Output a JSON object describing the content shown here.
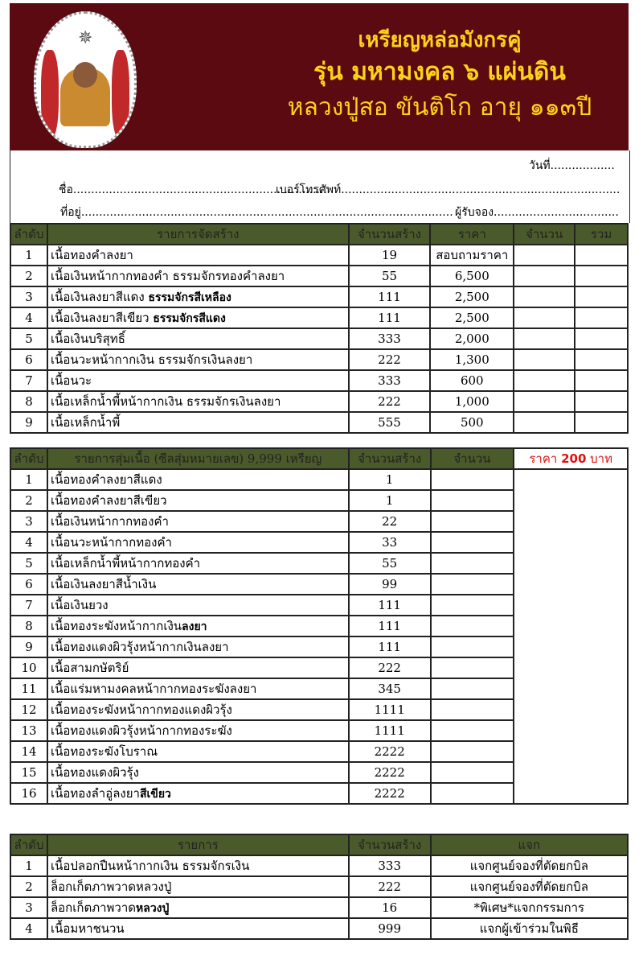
{
  "header": {
    "title1": "เหรียญหล่อมังกรคู่",
    "title2": "รุ่น มหามงคล ๖ แผ่นดิน",
    "title3": "หลวงปู่สอ ขันติโก อายุ ๑๑๓ปี",
    "banner_color": "#5a0a10",
    "title_color": "#ffd21a"
  },
  "form": {
    "date": "วันที่..................",
    "name": "ชื่อ.......................................................... ............",
    "phone": "เบอร์โทรศัพท์................................................................................",
    "address": "ที่อยู่..........................................................................................................................",
    "receiver": "ผู้รับจอง..................................."
  },
  "section1": {
    "headers": [
      "ลำดับ",
      "รายการจัดสร้าง",
      "จำนวนสร้าง",
      "ราคา",
      "จำนวน",
      "รวม"
    ],
    "rows": [
      {
        "no": "1",
        "name": "เนื้อทองคำลงยา",
        "bold": "",
        "qty": "19",
        "price": "สอบถามราคา"
      },
      {
        "no": "2",
        "name": "เนื้อเงินหน้ากากทองคำ ธรรมจักรทองคำลงยา",
        "bold": "",
        "qty": "55",
        "price": "6,500"
      },
      {
        "no": "3",
        "name": "เนื้อเงินลงยาสีแดง ",
        "bold": "ธรรมจักรสีเหลือง",
        "qty": "111",
        "price": "2,500"
      },
      {
        "no": "4",
        "name": "เนื้อเงินลงยาสีเขียว ",
        "bold": "ธรรมจักรสีแดง",
        "qty": "111",
        "price": "2,500"
      },
      {
        "no": "5",
        "name": "เนื้อเงินบริสุทธิ์",
        "bold": "",
        "qty": "333",
        "price": "2,000"
      },
      {
        "no": "6",
        "name": "เนื้อนวะหน้ากากเงิน ธรรมจักรเงินลงยา",
        "bold": "",
        "qty": "222",
        "price": "1,300"
      },
      {
        "no": "7",
        "name": "เนื้อนวะ",
        "bold": "",
        "qty": "333",
        "price": "600"
      },
      {
        "no": "8",
        "name": "เนื้อเหล็กน้ำพี้หน้ากากเงิน ธรรมจักรเงินลงยา",
        "bold": "",
        "qty": "222",
        "price": "1,000"
      },
      {
        "no": "9",
        "name": "เนื้อเหล็กน้ำพี้",
        "bold": "",
        "qty": "555",
        "price": "500"
      }
    ]
  },
  "section2": {
    "headers": [
      "ลำดับ",
      "รายการสุ่มเนื้อ (ซีลสุ่มหมายเลข) 9,999 เหรียญ",
      "จำนวนสร้าง",
      "จำนวน"
    ],
    "price_label": "ราคา ",
    "price_value": "200",
    "price_unit": " บาท",
    "rows": [
      {
        "no": "1",
        "name": "เนื้อทองคำลงยาสีแดง",
        "bold": "",
        "qty": "1"
      },
      {
        "no": "2",
        "name": "เนื้อทองคำลงยาสีเขียว",
        "bold": "",
        "qty": "1"
      },
      {
        "no": "3",
        "name": "เนื้อเงินหน้ากากทองคำ",
        "bold": "",
        "qty": "22"
      },
      {
        "no": "4",
        "name": "เนื้อนวะหน้ากากทองคำ",
        "bold": "",
        "qty": "33"
      },
      {
        "no": "5",
        "name": "เนื้อเหล็กน้ำพี้หน้ากากทองคำ",
        "bold": "",
        "qty": "55"
      },
      {
        "no": "6",
        "name": "เนื้อเงินลงยาสีน้ำเงิน",
        "bold": "",
        "qty": "99"
      },
      {
        "no": "7",
        "name": "เนื้อเงินยวง",
        "bold": "",
        "qty": "111"
      },
      {
        "no": "8",
        "name": "เนื้อทองระฆังหน้ากากเงิน",
        "bold": "ลงยา",
        "qty": "111"
      },
      {
        "no": "9",
        "name": "เนื้อทองแดงผิวรุ้งหน้ากากเงินลงยา",
        "bold": "",
        "qty": "111"
      },
      {
        "no": "10",
        "name": "เนื้อสามกษัตริย์",
        "bold": "",
        "qty": "222"
      },
      {
        "no": "11",
        "name": "เนื้อแร่มหามงคลหน้ากากทองระฆังลงยา",
        "bold": "",
        "qty": "345"
      },
      {
        "no": "12",
        "name": "เนื้อทองระฆังหน้ากากทองแดงผิวรุ้ง",
        "bold": "",
        "qty": "1111"
      },
      {
        "no": "13",
        "name": "เนื้อทองแดงผิวรุ้งหน้ากากทองระฆัง",
        "bold": "",
        "qty": "1111"
      },
      {
        "no": "14",
        "name": "เนื้อทองระฆังโบราณ",
        "bold": "",
        "qty": "2222"
      },
      {
        "no": "15",
        "name": "เนื้อทองแดงผิวรุ้ง",
        "bold": "",
        "qty": "2222"
      },
      {
        "no": "16",
        "name": "เนื้อทองลำอู่ลงยา",
        "bold": "สีเขียว",
        "qty": "2222"
      }
    ]
  },
  "section3": {
    "headers": [
      "ลำดับ",
      "รายการ",
      "จำนวนสร้าง",
      "แจก"
    ],
    "rows": [
      {
        "no": "1",
        "name": "เนื้อปลอกปืนหน้ากากเงิน ธรรมจักรเงิน",
        "bold": "",
        "qty": "333",
        "note": "แจกศูนย์จองที่ตัดยกบิล"
      },
      {
        "no": "2",
        "name": "ล็อกเก็ตภาพวาดหลวงปู่",
        "bold": "",
        "qty": "222",
        "note": "แจกศูนย์จองที่ตัดยกบิล"
      },
      {
        "no": "3",
        "name": "ล็อกเก็ตภาพวาด",
        "bold": "หลวงปู่",
        "qty": "16",
        "note": "*พิเศษ*แจกกรรมการ"
      },
      {
        "no": "4",
        "name": "เนื้อมหาชนวน",
        "bold": "",
        "qty": "999",
        "note": "แจกผู้เข้าร่วมในพิธี"
      }
    ]
  }
}
